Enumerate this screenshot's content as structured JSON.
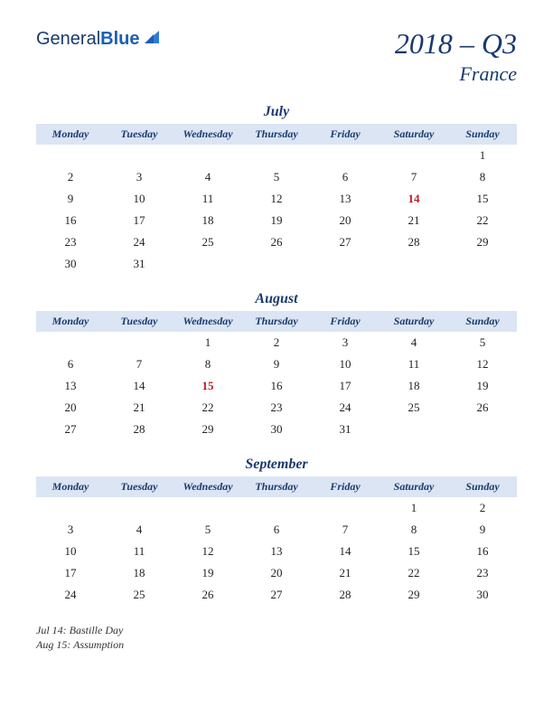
{
  "logo": {
    "part1": "General",
    "part2": "Blue"
  },
  "title": "2018 – Q3",
  "subtitle": "France",
  "day_headers": [
    "Monday",
    "Tuesday",
    "Wednesday",
    "Thursday",
    "Friday",
    "Saturday",
    "Sunday"
  ],
  "header_bg": "#dbe5f4",
  "accent_color": "#1a3a6e",
  "holiday_color": "#c01c28",
  "months": [
    {
      "name": "July",
      "weeks": [
        [
          "",
          "",
          "",
          "",
          "",
          "",
          "1"
        ],
        [
          "2",
          "3",
          "4",
          "5",
          "6",
          "7",
          "8"
        ],
        [
          "9",
          "10",
          "11",
          "12",
          "13",
          "14",
          "15"
        ],
        [
          "16",
          "17",
          "18",
          "19",
          "20",
          "21",
          "22"
        ],
        [
          "23",
          "24",
          "25",
          "26",
          "27",
          "28",
          "29"
        ],
        [
          "30",
          "31",
          "",
          "",
          "",
          "",
          ""
        ]
      ],
      "holidays": [
        "14"
      ]
    },
    {
      "name": "August",
      "weeks": [
        [
          "",
          "",
          "1",
          "2",
          "3",
          "4",
          "5"
        ],
        [
          "6",
          "7",
          "8",
          "9",
          "10",
          "11",
          "12"
        ],
        [
          "13",
          "14",
          "15",
          "16",
          "17",
          "18",
          "19"
        ],
        [
          "20",
          "21",
          "22",
          "23",
          "24",
          "25",
          "26"
        ],
        [
          "27",
          "28",
          "29",
          "30",
          "31",
          "",
          ""
        ]
      ],
      "holidays": [
        "15"
      ]
    },
    {
      "name": "September",
      "weeks": [
        [
          "",
          "",
          "",
          "",
          "",
          "1",
          "2"
        ],
        [
          "3",
          "4",
          "5",
          "6",
          "7",
          "8",
          "9"
        ],
        [
          "10",
          "11",
          "12",
          "13",
          "14",
          "15",
          "16"
        ],
        [
          "17",
          "18",
          "19",
          "20",
          "21",
          "22",
          "23"
        ],
        [
          "24",
          "25",
          "26",
          "27",
          "28",
          "29",
          "30"
        ]
      ],
      "holidays": []
    }
  ],
  "holiday_list": [
    "Jul 14: Bastille Day",
    "Aug 15: Assumption"
  ]
}
